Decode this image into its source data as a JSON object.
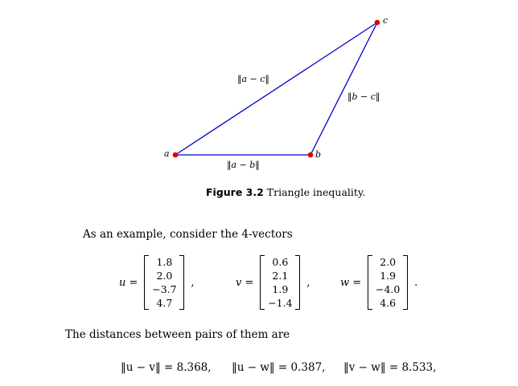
{
  "figure": {
    "points": [
      {
        "name": "a",
        "label": "a",
        "color": "#e00000"
      },
      {
        "name": "b",
        "label": "b",
        "color": "#e00000"
      },
      {
        "name": "c",
        "label": "c",
        "color": "#e00000"
      }
    ],
    "edge_color": "#0000cc",
    "edge_labels": {
      "ac": "‖a − c‖",
      "bc": "‖b − c‖",
      "ab": "‖a − b‖"
    },
    "caption_number": "Figure 3.2",
    "caption_text": " Triangle inequality."
  },
  "intro": "As an example, consider the 4-vectors",
  "vectors": [
    {
      "name": "u =",
      "values": [
        "1.8",
        "2.0",
        "−3.7",
        "4.7"
      ],
      "punct": ","
    },
    {
      "name": "v =",
      "values": [
        "0.6",
        "2.1",
        "1.9",
        "−1.4"
      ],
      "punct": ","
    },
    {
      "name": "w =",
      "values": [
        "2.0",
        "1.9",
        "−4.0",
        "4.6"
      ],
      "punct": "."
    }
  ],
  "distances_intro": "The distances between pairs of them are",
  "distances": [
    "‖u − v‖ = 8.368,",
    "‖u − w‖ = 0.387,",
    "‖v − w‖ = 8.533,"
  ]
}
